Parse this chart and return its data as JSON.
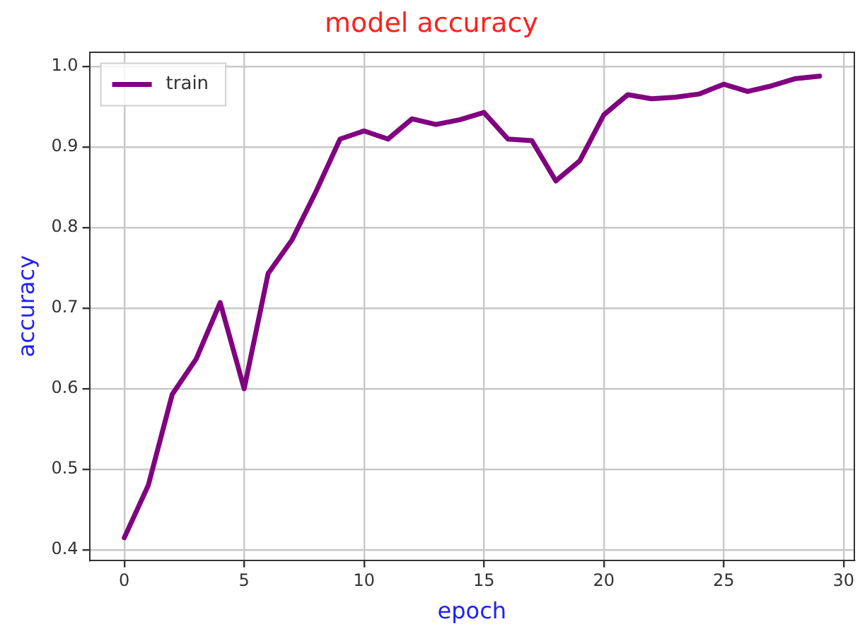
{
  "chart_data": {
    "type": "line",
    "title": "model accuracy",
    "xlabel": "epoch",
    "ylabel": "accuracy",
    "x": [
      0,
      1,
      2,
      3,
      4,
      5,
      6,
      7,
      8,
      9,
      10,
      11,
      12,
      13,
      14,
      15,
      16,
      17,
      18,
      19,
      20,
      21,
      22,
      23,
      24,
      25,
      26,
      27,
      28,
      29
    ],
    "series": [
      {
        "name": "train",
        "color": "#800080",
        "values": [
          0.415,
          0.48,
          0.593,
          0.637,
          0.707,
          0.6,
          0.743,
          0.785,
          0.845,
          0.91,
          0.92,
          0.91,
          0.935,
          0.928,
          0.934,
          0.943,
          0.91,
          0.908,
          0.858,
          0.883,
          0.94,
          0.965,
          0.96,
          0.962,
          0.966,
          0.978,
          0.969,
          0.976,
          0.985,
          0.988
        ]
      }
    ],
    "xlim": [
      -1.45,
      30.45
    ],
    "xticks": [
      0,
      5,
      10,
      15,
      20,
      25,
      30
    ],
    "ylim": [
      0.387,
      1.018
    ],
    "yticks": [
      0.4,
      0.5,
      0.6,
      0.7,
      0.8,
      0.9,
      {
        "value": 1,
        "label": "1.0"
      }
    ],
    "grid": true,
    "legend": "top left",
    "marker": "none",
    "line_style": "solid"
  }
}
